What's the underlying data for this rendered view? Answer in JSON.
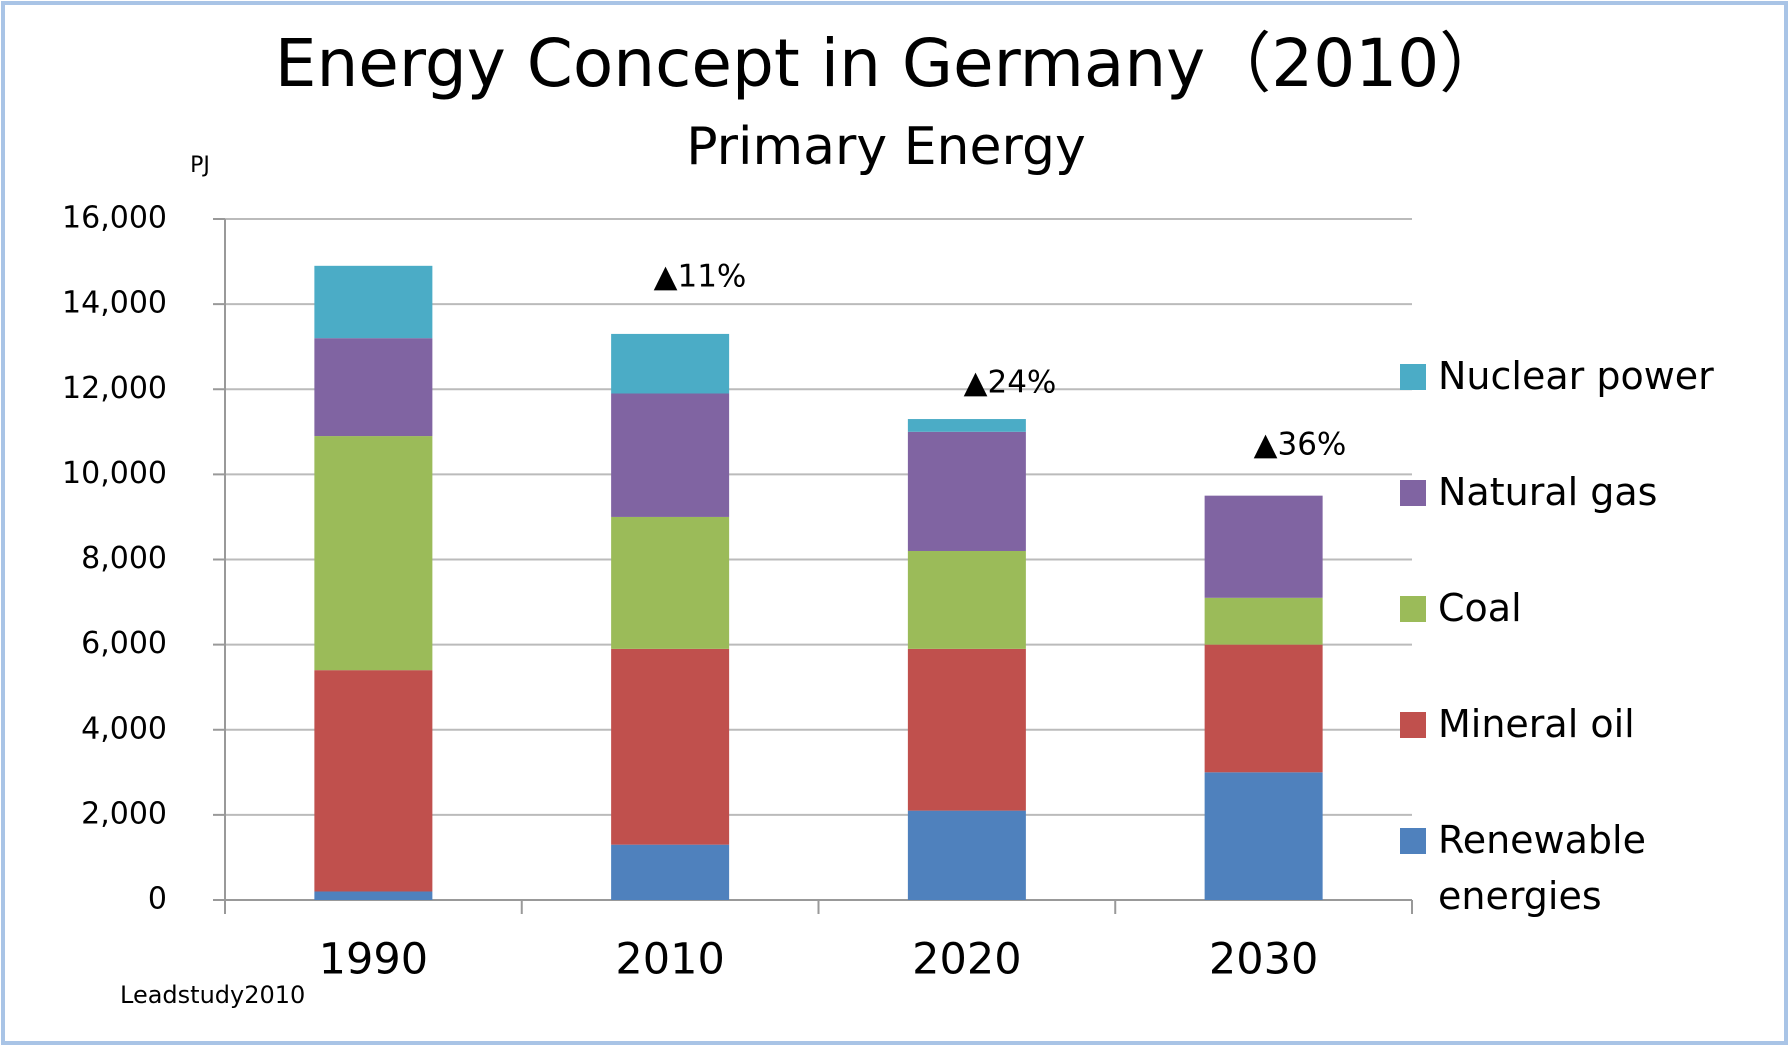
{
  "chart_data": {
    "type": "stacked_bar",
    "title": "Energy Concept in Germany（2010）",
    "subtitle": "Primary Energy",
    "y_unit": "PJ",
    "source": "Leadstudy2010",
    "categories": [
      "1990",
      "2010",
      "2020",
      "2030"
    ],
    "series": [
      {
        "name": "Renewable energies",
        "color": "#4f81bd",
        "values": [
          200,
          1300,
          2100,
          3000
        ]
      },
      {
        "name": "Mineral oil",
        "color": "#c0504d",
        "values": [
          5200,
          4600,
          3800,
          3000
        ]
      },
      {
        "name": "Coal",
        "color": "#9bbb59",
        "values": [
          5500,
          3100,
          2300,
          1100
        ]
      },
      {
        "name": "Natural gas",
        "color": "#8064a2",
        "values": [
          2300,
          2900,
          2800,
          2400
        ]
      },
      {
        "name": "Nuclear power",
        "color": "#4bacc6",
        "values": [
          1700,
          1400,
          300,
          0
        ]
      }
    ],
    "annotations": [
      "▲11%",
      "▲24%",
      "▲36%"
    ],
    "ylim": [
      0,
      16000
    ],
    "yticks": [
      0,
      {
        "value": 2000,
        "label": "2,000"
      },
      {
        "value": 4000,
        "label": "4,000"
      },
      {
        "value": 6000,
        "label": "6,000"
      },
      {
        "value": 8000,
        "label": "8,000"
      },
      {
        "value": 10000,
        "label": "10,000"
      },
      {
        "value": 12000,
        "label": "12,000"
      },
      {
        "value": 14000,
        "label": "14,000"
      },
      {
        "value": 16000,
        "label": "16,000"
      }
    ],
    "grid": true,
    "legend": "right"
  }
}
